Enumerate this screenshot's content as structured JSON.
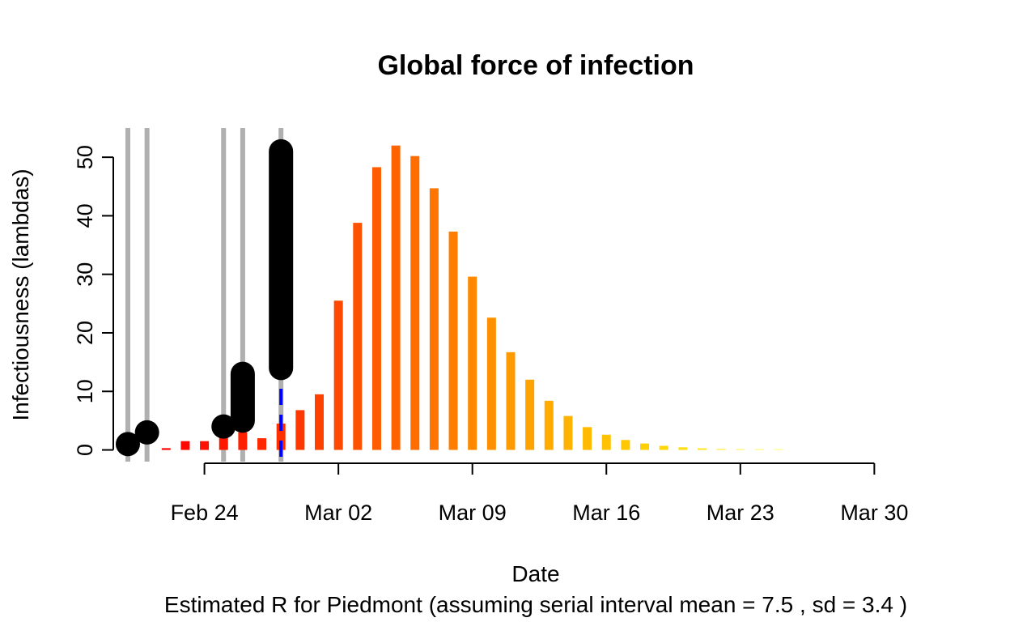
{
  "chart_data": {
    "type": "bar",
    "title": "Global force of infection",
    "xlabel": "Date",
    "ylabel": "Infectiousness (lambdas)",
    "subtitle": "Estimated R for Piedmont (assuming serial interval mean = 7.5 , sd = 3.4 )",
    "x_range": [
      "2020-02-20",
      "2020-03-31"
    ],
    "ylim": [
      -2,
      55
    ],
    "x_ticks": [
      {
        "date": "2020-02-24",
        "label": "Feb 24"
      },
      {
        "date": "2020-03-02",
        "label": "Mar 02"
      },
      {
        "date": "2020-03-09",
        "label": "Mar 09"
      },
      {
        "date": "2020-03-16",
        "label": "Mar 16"
      },
      {
        "date": "2020-03-23",
        "label": "Mar 23"
      },
      {
        "date": "2020-03-30",
        "label": "Mar 30"
      }
    ],
    "y_ticks": [
      0,
      10,
      20,
      30,
      40,
      50
    ],
    "grid": false,
    "bar_color_gradient": [
      "#FF0000",
      "#FF3300",
      "#FF6A00",
      "#FFA500",
      "#FFD400",
      "#FFFF66"
    ],
    "lambdas": [
      {
        "date": "2020-02-22",
        "value": 0.3
      },
      {
        "date": "2020-02-23",
        "value": 1.5
      },
      {
        "date": "2020-02-24",
        "value": 1.5
      },
      {
        "date": "2020-02-25",
        "value": 2.4
      },
      {
        "date": "2020-02-26",
        "value": 3.0
      },
      {
        "date": "2020-02-27",
        "value": 2.0
      },
      {
        "date": "2020-02-28",
        "value": 4.5
      },
      {
        "date": "2020-02-29",
        "value": 6.8
      },
      {
        "date": "2020-03-01",
        "value": 9.5
      },
      {
        "date": "2020-03-02",
        "value": 25.5
      },
      {
        "date": "2020-03-03",
        "value": 38.8
      },
      {
        "date": "2020-03-04",
        "value": 48.3
      },
      {
        "date": "2020-03-05",
        "value": 52.0
      },
      {
        "date": "2020-03-06",
        "value": 50.2
      },
      {
        "date": "2020-03-07",
        "value": 44.7
      },
      {
        "date": "2020-03-08",
        "value": 37.3
      },
      {
        "date": "2020-03-09",
        "value": 29.6
      },
      {
        "date": "2020-03-10",
        "value": 22.6
      },
      {
        "date": "2020-03-11",
        "value": 16.7
      },
      {
        "date": "2020-03-12",
        "value": 12.0
      },
      {
        "date": "2020-03-13",
        "value": 8.4
      },
      {
        "date": "2020-03-14",
        "value": 5.8
      },
      {
        "date": "2020-03-15",
        "value": 3.9
      },
      {
        "date": "2020-03-16",
        "value": 2.6
      },
      {
        "date": "2020-03-17",
        "value": 1.7
      },
      {
        "date": "2020-03-18",
        "value": 1.1
      },
      {
        "date": "2020-03-19",
        "value": 0.7
      },
      {
        "date": "2020-03-20",
        "value": 0.45
      },
      {
        "date": "2020-03-21",
        "value": 0.28
      },
      {
        "date": "2020-03-22",
        "value": 0.17
      },
      {
        "date": "2020-03-23",
        "value": 0.1
      },
      {
        "date": "2020-03-24",
        "value": 0.06
      },
      {
        "date": "2020-03-25",
        "value": 0.03
      }
    ],
    "observed_cases": [
      {
        "date": "2020-02-20",
        "value": 1
      },
      {
        "date": "2020-02-21",
        "value": 3
      },
      {
        "date": "2020-02-25",
        "value": 4
      },
      {
        "date": "2020-02-26",
        "value": 5
      },
      {
        "date": "2020-02-26",
        "value": 13
      },
      {
        "date": "2020-02-28",
        "value": 14
      },
      {
        "date": "2020-02-28",
        "value": 51
      }
    ],
    "case_date_lines": {
      "color": "#B0B0B0",
      "dates": [
        "2020-02-20",
        "2020-02-21",
        "2020-02-25",
        "2020-02-26",
        "2020-02-28"
      ]
    },
    "current_date_line": {
      "date": "2020-02-28",
      "color": "#0000FF",
      "style": "dashed"
    }
  }
}
